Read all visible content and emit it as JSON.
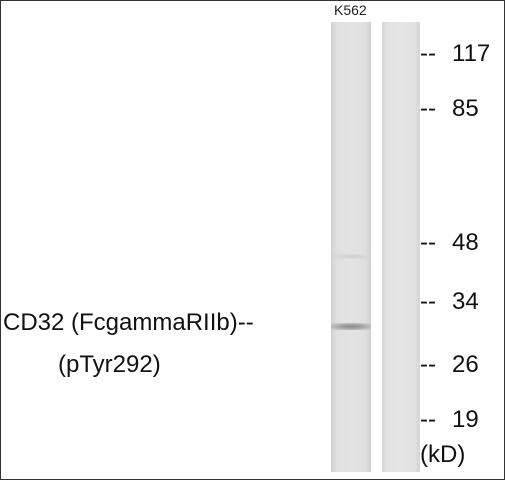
{
  "lane_label": "K562",
  "protein_label": "CD32 (FcgammaRIIb)--",
  "modification_label": "(pTyr292)",
  "markers": [
    {
      "value": "117"
    },
    {
      "value": "85"
    },
    {
      "value": "48"
    },
    {
      "value": "34"
    },
    {
      "value": "26"
    },
    {
      "value": "19"
    }
  ],
  "marker_dash": "--",
  "unit": "(kD)"
}
